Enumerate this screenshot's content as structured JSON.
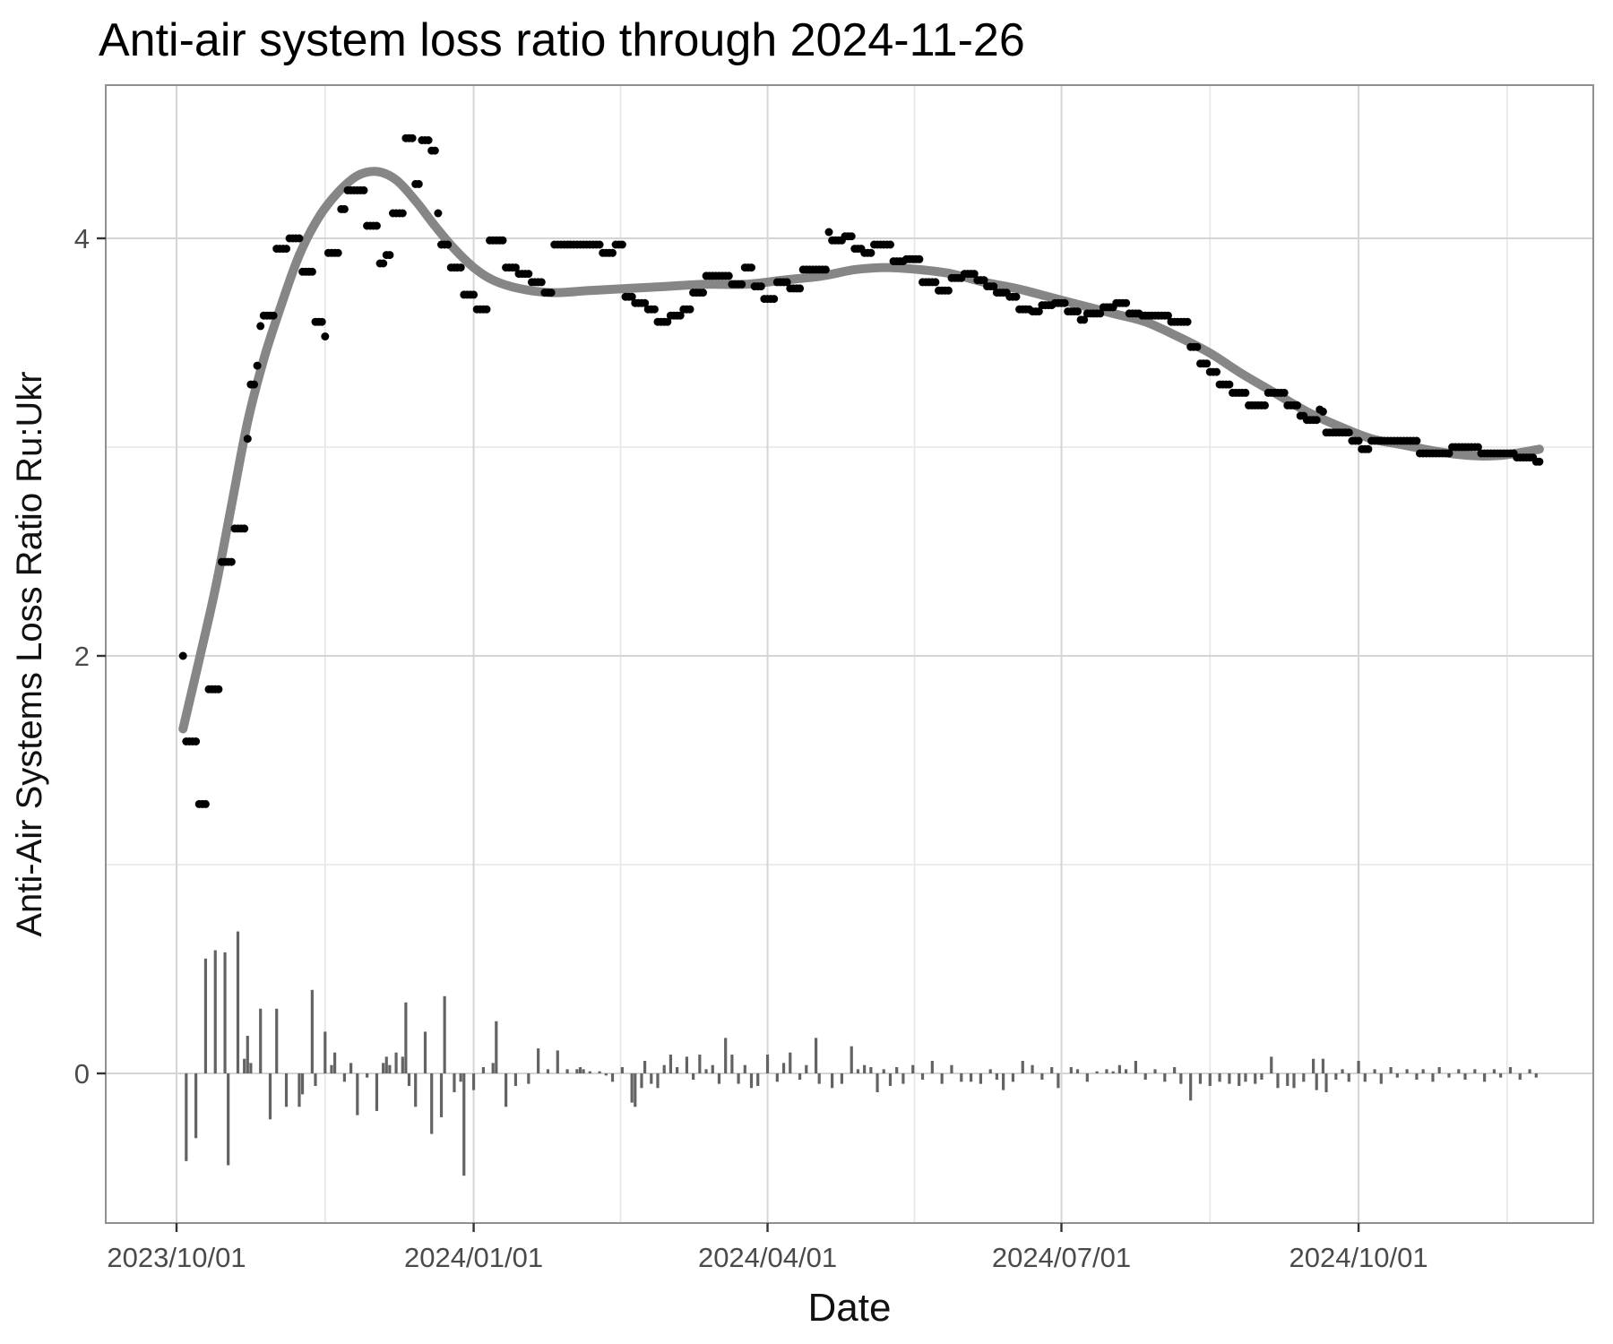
{
  "page": {
    "title": "Anti-air system loss ratio through 2024-11-26"
  },
  "chart_data": {
    "type": "scatter+line+bar",
    "title": "Anti-air system loss ratio through 2024-11-26",
    "xlabel": "Date",
    "ylabel": "Anti-Air Systems Loss Ratio Ru:Ukr",
    "legend": "none",
    "grid": "on",
    "x_axis": {
      "start_date": "2023-10-01",
      "end_date": "2024-11-26",
      "tick_labels": [
        "2023/10/01",
        "2024/01/01",
        "2024/04/01",
        "2024/07/01",
        "2024/10/01"
      ],
      "tick_days": [
        0,
        92,
        183,
        274,
        366
      ],
      "minor_grid_days": [
        46,
        137.5,
        228.5,
        320,
        412
      ],
      "domain_days": [
        -22,
        439
      ]
    },
    "y_axis": {
      "tick_labels": [
        "0",
        "2",
        "4"
      ],
      "tick_values": [
        0,
        2,
        4
      ],
      "minor_grid_values": [
        1,
        3
      ],
      "domain": [
        -0.72,
        4.73
      ]
    },
    "ratio_segments_day_start_end_value": [
      [
        2,
        2,
        2.0
      ],
      [
        3,
        6,
        1.59
      ],
      [
        7,
        9,
        1.29
      ],
      [
        10,
        13,
        1.84
      ],
      [
        14,
        17,
        2.45
      ],
      [
        18,
        21,
        2.61
      ],
      [
        22,
        22,
        3.04
      ],
      [
        23,
        24,
        3.3
      ],
      [
        25,
        25,
        3.39
      ],
      [
        26,
        26,
        3.58
      ],
      [
        27,
        30,
        3.63
      ],
      [
        31,
        34,
        3.95
      ],
      [
        35,
        38,
        4.0
      ],
      [
        39,
        42,
        3.84
      ],
      [
        43,
        45,
        3.6
      ],
      [
        46,
        46,
        3.53
      ],
      [
        47,
        50,
        3.93
      ],
      [
        51,
        52,
        4.14
      ],
      [
        53,
        58,
        4.23
      ],
      [
        59,
        62,
        4.06
      ],
      [
        63,
        64,
        3.88
      ],
      [
        65,
        66,
        3.92
      ],
      [
        67,
        70,
        4.12
      ],
      [
        71,
        73,
        4.48
      ],
      [
        74,
        75,
        4.26
      ],
      [
        76,
        78,
        4.47
      ],
      [
        79,
        80,
        4.42
      ],
      [
        81,
        81,
        4.12
      ],
      [
        82,
        84,
        3.97
      ],
      [
        85,
        88,
        3.86
      ],
      [
        89,
        92,
        3.73
      ],
      [
        93,
        96,
        3.66
      ],
      [
        97,
        101,
        3.99
      ],
      [
        102,
        105,
        3.86
      ],
      [
        106,
        109,
        3.83
      ],
      [
        110,
        113,
        3.79
      ],
      [
        114,
        116,
        3.74
      ],
      [
        117,
        131,
        3.97
      ],
      [
        132,
        135,
        3.93
      ],
      [
        136,
        138,
        3.97
      ],
      [
        139,
        141,
        3.72
      ],
      [
        142,
        145,
        3.69
      ],
      [
        146,
        148,
        3.66
      ],
      [
        149,
        152,
        3.6
      ],
      [
        153,
        156,
        3.63
      ],
      [
        157,
        159,
        3.66
      ],
      [
        160,
        163,
        3.74
      ],
      [
        164,
        171,
        3.82
      ],
      [
        172,
        175,
        3.78
      ],
      [
        176,
        178,
        3.86
      ],
      [
        179,
        181,
        3.77
      ],
      [
        182,
        185,
        3.71
      ],
      [
        186,
        189,
        3.79
      ],
      [
        190,
        193,
        3.76
      ],
      [
        194,
        201,
        3.85
      ],
      [
        202,
        202,
        4.03
      ],
      [
        203,
        206,
        3.99
      ],
      [
        207,
        209,
        4.01
      ],
      [
        210,
        212,
        3.95
      ],
      [
        213,
        215,
        3.93
      ],
      [
        216,
        221,
        3.97
      ],
      [
        222,
        225,
        3.89
      ],
      [
        226,
        230,
        3.9
      ],
      [
        231,
        235,
        3.79
      ],
      [
        236,
        239,
        3.75
      ],
      [
        240,
        243,
        3.81
      ],
      [
        244,
        247,
        3.83
      ],
      [
        248,
        250,
        3.8
      ],
      [
        251,
        253,
        3.77
      ],
      [
        254,
        257,
        3.74
      ],
      [
        258,
        260,
        3.72
      ],
      [
        261,
        264,
        3.66
      ],
      [
        265,
        267,
        3.65
      ],
      [
        268,
        271,
        3.68
      ],
      [
        272,
        275,
        3.69
      ],
      [
        276,
        279,
        3.65
      ],
      [
        280,
        281,
        3.61
      ],
      [
        282,
        286,
        3.64
      ],
      [
        287,
        290,
        3.67
      ],
      [
        291,
        294,
        3.69
      ],
      [
        295,
        298,
        3.64
      ],
      [
        299,
        307,
        3.63
      ],
      [
        308,
        313,
        3.6
      ],
      [
        314,
        316,
        3.48
      ],
      [
        317,
        319,
        3.4
      ],
      [
        320,
        322,
        3.36
      ],
      [
        323,
        326,
        3.3
      ],
      [
        327,
        331,
        3.26
      ],
      [
        332,
        337,
        3.2
      ],
      [
        338,
        343,
        3.26
      ],
      [
        344,
        347,
        3.2
      ],
      [
        348,
        349,
        3.15
      ],
      [
        350,
        353,
        3.13
      ],
      [
        354,
        354,
        3.18
      ],
      [
        355,
        355,
        3.17
      ],
      [
        356,
        363,
        3.07
      ],
      [
        364,
        366,
        3.03
      ],
      [
        367,
        369,
        2.99
      ],
      [
        370,
        384,
        3.03
      ],
      [
        385,
        394,
        2.97
      ],
      [
        395,
        403,
        3.0
      ],
      [
        404,
        414,
        2.97
      ],
      [
        415,
        420,
        2.95
      ],
      [
        421,
        422,
        2.93
      ]
    ],
    "trend_day_value": [
      [
        2,
        1.65
      ],
      [
        7,
        1.98
      ],
      [
        12,
        2.32
      ],
      [
        17,
        2.72
      ],
      [
        22,
        3.12
      ],
      [
        27,
        3.42
      ],
      [
        32,
        3.66
      ],
      [
        38,
        3.92
      ],
      [
        44,
        4.1
      ],
      [
        50,
        4.22
      ],
      [
        56,
        4.3
      ],
      [
        62,
        4.32
      ],
      [
        68,
        4.28
      ],
      [
        74,
        4.18
      ],
      [
        80,
        4.06
      ],
      [
        86,
        3.95
      ],
      [
        92,
        3.86
      ],
      [
        98,
        3.8
      ],
      [
        106,
        3.76
      ],
      [
        116,
        3.74
      ],
      [
        128,
        3.75
      ],
      [
        140,
        3.76
      ],
      [
        152,
        3.77
      ],
      [
        164,
        3.78
      ],
      [
        176,
        3.78
      ],
      [
        188,
        3.8
      ],
      [
        200,
        3.82
      ],
      [
        210,
        3.85
      ],
      [
        220,
        3.86
      ],
      [
        230,
        3.85
      ],
      [
        240,
        3.83
      ],
      [
        250,
        3.79
      ],
      [
        260,
        3.76
      ],
      [
        270,
        3.72
      ],
      [
        280,
        3.68
      ],
      [
        290,
        3.64
      ],
      [
        300,
        3.6
      ],
      [
        310,
        3.53
      ],
      [
        320,
        3.45
      ],
      [
        330,
        3.35
      ],
      [
        340,
        3.26
      ],
      [
        350,
        3.17
      ],
      [
        360,
        3.1
      ],
      [
        370,
        3.04
      ],
      [
        380,
        3.01
      ],
      [
        390,
        2.98
      ],
      [
        400,
        2.96
      ],
      [
        410,
        2.96
      ],
      [
        422,
        2.99
      ]
    ],
    "bars_day_value": [
      [
        3,
        -0.42
      ],
      [
        6,
        -0.31
      ],
      [
        9,
        0.55
      ],
      [
        12,
        0.59
      ],
      [
        15,
        0.58
      ],
      [
        16,
        -0.44
      ],
      [
        19,
        0.68
      ],
      [
        21,
        0.07
      ],
      [
        22,
        0.18
      ],
      [
        23,
        0.05
      ],
      [
        26,
        0.31
      ],
      [
        29,
        -0.22
      ],
      [
        31,
        0.31
      ],
      [
        34,
        -0.16
      ],
      [
        38,
        -0.16
      ],
      [
        39,
        -0.1
      ],
      [
        42,
        0.4
      ],
      [
        43,
        -0.06
      ],
      [
        46,
        0.2
      ],
      [
        48,
        0.04
      ],
      [
        49,
        0.1
      ],
      [
        52,
        -0.04
      ],
      [
        54,
        0.05
      ],
      [
        56,
        -0.2
      ],
      [
        59,
        -0.02
      ],
      [
        62,
        -0.18
      ],
      [
        64,
        0.05
      ],
      [
        65,
        0.08
      ],
      [
        66,
        0.04
      ],
      [
        68,
        0.1
      ],
      [
        70,
        0.08
      ],
      [
        71,
        0.34
      ],
      [
        72,
        -0.06
      ],
      [
        74,
        -0.16
      ],
      [
        77,
        0.2
      ],
      [
        79,
        -0.29
      ],
      [
        82,
        -0.21
      ],
      [
        83,
        0.37
      ],
      [
        86,
        -0.09
      ],
      [
        88,
        -0.04
      ],
      [
        89,
        -0.49
      ],
      [
        92,
        -0.08
      ],
      [
        95,
        0.03
      ],
      [
        98,
        0.05
      ],
      [
        99,
        0.25
      ],
      [
        102,
        -0.16
      ],
      [
        105,
        -0.06
      ],
      [
        109,
        -0.05
      ],
      [
        112,
        0.12
      ],
      [
        115,
        0.02
      ],
      [
        118,
        0.11
      ],
      [
        121,
        0.02
      ],
      [
        124,
        0.02
      ],
      [
        125,
        0.03
      ],
      [
        126,
        0.02
      ],
      [
        128,
        0.01
      ],
      [
        131,
        0.01
      ],
      [
        133,
        -0.01
      ],
      [
        135,
        -0.04
      ],
      [
        138,
        0.03
      ],
      [
        141,
        -0.14
      ],
      [
        142,
        -0.16
      ],
      [
        144,
        -0.07
      ],
      [
        145,
        0.06
      ],
      [
        147,
        -0.05
      ],
      [
        149,
        -0.07
      ],
      [
        151,
        0.04
      ],
      [
        153,
        0.09
      ],
      [
        155,
        0.03
      ],
      [
        158,
        0.08
      ],
      [
        160,
        -0.03
      ],
      [
        162,
        0.09
      ],
      [
        164,
        0.02
      ],
      [
        166,
        0.04
      ],
      [
        168,
        -0.05
      ],
      [
        170,
        0.17
      ],
      [
        172,
        0.09
      ],
      [
        174,
        -0.05
      ],
      [
        176,
        0.04
      ],
      [
        178,
        -0.07
      ],
      [
        180,
        -0.06
      ],
      [
        183,
        0.09
      ],
      [
        186,
        -0.04
      ],
      [
        188,
        0.05
      ],
      [
        190,
        0.1
      ],
      [
        193,
        -0.03
      ],
      [
        195,
        0.04
      ],
      [
        198,
        0.17
      ],
      [
        199,
        -0.05
      ],
      [
        203,
        -0.07
      ],
      [
        206,
        -0.05
      ],
      [
        209,
        0.13
      ],
      [
        211,
        0.02
      ],
      [
        213,
        0.04
      ],
      [
        215,
        0.03
      ],
      [
        217,
        -0.09
      ],
      [
        219,
        0.02
      ],
      [
        221,
        -0.06
      ],
      [
        223,
        0.03
      ],
      [
        225,
        -0.05
      ],
      [
        228,
        0.04
      ],
      [
        231,
        -0.03
      ],
      [
        234,
        0.06
      ],
      [
        237,
        -0.05
      ],
      [
        240,
        0.04
      ],
      [
        243,
        -0.04
      ],
      [
        246,
        -0.04
      ],
      [
        249,
        -0.05
      ],
      [
        252,
        0.02
      ],
      [
        254,
        -0.03
      ],
      [
        256,
        -0.08
      ],
      [
        259,
        -0.04
      ],
      [
        262,
        0.06
      ],
      [
        265,
        0.04
      ],
      [
        268,
        -0.03
      ],
      [
        271,
        0.03
      ],
      [
        273,
        -0.07
      ],
      [
        277,
        0.03
      ],
      [
        279,
        0.02
      ],
      [
        282,
        -0.04
      ],
      [
        285,
        0.01
      ],
      [
        288,
        0.02
      ],
      [
        290,
        0.01
      ],
      [
        292,
        0.04
      ],
      [
        294,
        0.02
      ],
      [
        297,
        0.06
      ],
      [
        300,
        -0.03
      ],
      [
        303,
        0.02
      ],
      [
        306,
        -0.04
      ],
      [
        309,
        0.03
      ],
      [
        311,
        -0.05
      ],
      [
        314,
        -0.13
      ],
      [
        317,
        -0.05
      ],
      [
        320,
        -0.06
      ],
      [
        323,
        -0.04
      ],
      [
        326,
        -0.05
      ],
      [
        329,
        -0.06
      ],
      [
        331,
        -0.04
      ],
      [
        334,
        -0.05
      ],
      [
        336,
        -0.03
      ],
      [
        339,
        0.08
      ],
      [
        341,
        -0.07
      ],
      [
        344,
        -0.06
      ],
      [
        346,
        -0.07
      ],
      [
        349,
        -0.04
      ],
      [
        352,
        0.07
      ],
      [
        353,
        -0.08
      ],
      [
        355,
        0.07
      ],
      [
        356,
        -0.09
      ],
      [
        359,
        -0.03
      ],
      [
        361,
        0.02
      ],
      [
        363,
        -0.04
      ],
      [
        366,
        0.06
      ],
      [
        368,
        -0.04
      ],
      [
        371,
        0.02
      ],
      [
        373,
        -0.05
      ],
      [
        376,
        0.03
      ],
      [
        378,
        -0.02
      ],
      [
        381,
        0.02
      ],
      [
        384,
        -0.03
      ],
      [
        386,
        0.02
      ],
      [
        389,
        -0.04
      ],
      [
        391,
        0.03
      ],
      [
        394,
        -0.02
      ],
      [
        397,
        0.02
      ],
      [
        399,
        -0.03
      ],
      [
        402,
        0.02
      ],
      [
        405,
        -0.04
      ],
      [
        408,
        0.02
      ],
      [
        410,
        -0.02
      ],
      [
        413,
        0.03
      ],
      [
        416,
        -0.03
      ],
      [
        419,
        0.02
      ],
      [
        421,
        -0.02
      ]
    ],
    "colors": {
      "point": "#000000",
      "trend": "#868686",
      "bar": "#636363",
      "grid_major": "#d5d5d5",
      "grid_minor": "#e6e6e6",
      "panel_border": "#909090",
      "tick_mark": "#333333",
      "tick_text": "#4a4a4a",
      "axis_title": "#111111",
      "title_text": "#000000",
      "background": "#ffffff"
    }
  }
}
